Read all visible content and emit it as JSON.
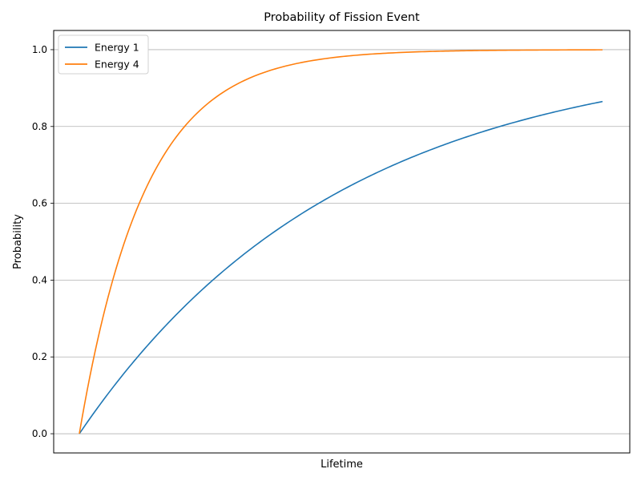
{
  "chart_data": {
    "type": "line",
    "title": "Probability of Fission Event",
    "xlabel": "Lifetime",
    "ylabel": "Probability",
    "xlim": [
      0,
      1
    ],
    "ylim": [
      -0.05,
      1.05
    ],
    "x_ticks_shown": false,
    "yticks": [
      0.0,
      0.2,
      0.4,
      0.6,
      0.8,
      1.0
    ],
    "ytick_labels": [
      "0.0",
      "0.2",
      "0.4",
      "0.6",
      "0.8",
      "1.0"
    ],
    "grid": "horizontal",
    "legend_position": "top-left",
    "x": [
      0,
      0.05,
      0.1,
      0.15,
      0.2,
      0.25,
      0.3,
      0.35,
      0.4,
      0.45,
      0.5,
      0.55,
      0.6,
      0.65,
      0.7,
      0.75,
      0.8,
      0.85,
      0.9,
      0.95,
      1.0
    ],
    "series": [
      {
        "name": "Energy 1",
        "color": "#1f77b4",
        "values": [
          0.0,
          0.095,
          0.181,
          0.259,
          0.33,
          0.393,
          0.451,
          0.503,
          0.551,
          0.593,
          0.632,
          0.667,
          0.699,
          0.727,
          0.753,
          0.777,
          0.798,
          0.817,
          0.835,
          0.85,
          0.865
        ]
      },
      {
        "name": "Energy 4",
        "color": "#ff7f0e",
        "values": [
          0.0,
          0.33,
          0.551,
          0.699,
          0.798,
          0.865,
          0.909,
          0.939,
          0.959,
          0.973,
          0.982,
          0.988,
          0.992,
          0.994,
          0.996,
          0.998,
          0.998,
          0.999,
          0.999,
          0.999,
          1.0
        ]
      }
    ]
  }
}
